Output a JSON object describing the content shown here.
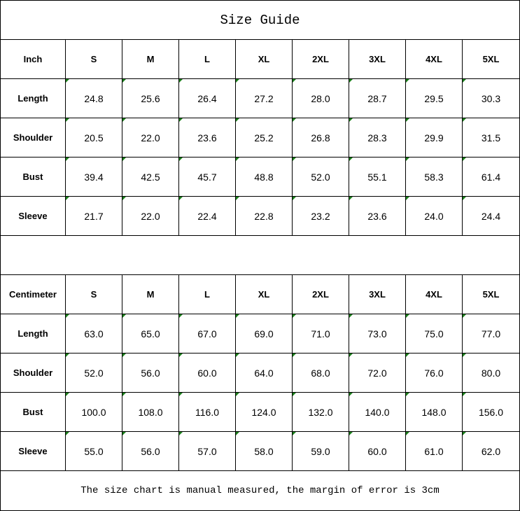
{
  "title": "Size Guide",
  "sizes": [
    "S",
    "M",
    "L",
    "XL",
    "2XL",
    "3XL",
    "4XL",
    "5XL"
  ],
  "inch": {
    "unit_label": "Inch",
    "rows": [
      {
        "label": "Length",
        "values": [
          "24.8",
          "25.6",
          "26.4",
          "27.2",
          "28.0",
          "28.7",
          "29.5",
          "30.3"
        ]
      },
      {
        "label": "Shoulder",
        "values": [
          "20.5",
          "22.0",
          "23.6",
          "25.2",
          "26.8",
          "28.3",
          "29.9",
          "31.5"
        ]
      },
      {
        "label": "Bust",
        "values": [
          "39.4",
          "42.5",
          "45.7",
          "48.8",
          "52.0",
          "55.1",
          "58.3",
          "61.4"
        ]
      },
      {
        "label": "Sleeve",
        "values": [
          "21.7",
          "22.0",
          "22.4",
          "22.8",
          "23.2",
          "23.6",
          "24.0",
          "24.4"
        ]
      }
    ]
  },
  "cm": {
    "unit_label": "Centimeter",
    "rows": [
      {
        "label": "Length",
        "values": [
          "63.0",
          "65.0",
          "67.0",
          "69.0",
          "71.0",
          "73.0",
          "75.0",
          "77.0"
        ]
      },
      {
        "label": "Shoulder",
        "values": [
          "52.0",
          "56.0",
          "60.0",
          "64.0",
          "68.0",
          "72.0",
          "76.0",
          "80.0"
        ]
      },
      {
        "label": "Bust",
        "values": [
          "100.0",
          "108.0",
          "116.0",
          "124.0",
          "132.0",
          "140.0",
          "148.0",
          "156.0"
        ]
      },
      {
        "label": "Sleeve",
        "values": [
          "55.0",
          "56.0",
          "57.0",
          "58.0",
          "59.0",
          "60.0",
          "61.0",
          "62.0"
        ]
      }
    ]
  },
  "footer": "The size chart is manual measured, the margin of error is 3cm",
  "colors": {
    "indicator": "#1a7f1a",
    "border": "#000000"
  }
}
